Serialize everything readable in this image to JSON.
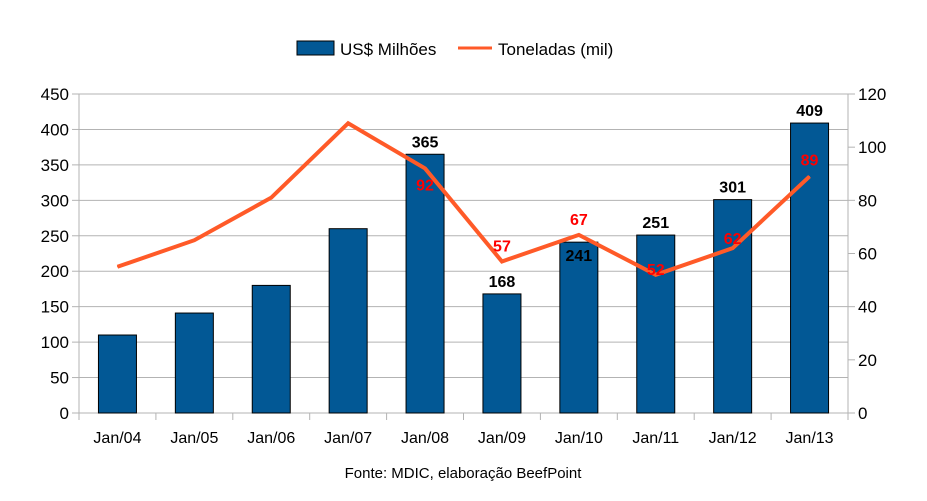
{
  "chart_data": {
    "type": "bar",
    "title": "",
    "categories": [
      "Jan/04",
      "Jan/05",
      "Jan/06",
      "Jan/07",
      "Jan/08",
      "Jan/09",
      "Jan/10",
      "Jan/11",
      "Jan/12",
      "Jan/13"
    ],
    "series": [
      {
        "name": "US$ Milhões",
        "type": "bar",
        "axis": "left",
        "color": "#025895",
        "values": [
          110,
          141,
          180,
          260,
          365,
          168,
          241,
          251,
          301,
          409
        ],
        "labels": [
          null,
          null,
          null,
          null,
          "365",
          "168",
          "241",
          "251",
          "301",
          "409"
        ]
      },
      {
        "name": "Toneladas (mil)",
        "type": "line",
        "axis": "right",
        "color": "#ff5a28",
        "values": [
          55,
          65,
          81,
          109,
          92,
          57,
          67,
          52,
          62,
          89
        ],
        "labels": [
          null,
          null,
          null,
          null,
          "92",
          "57",
          "67",
          "52",
          "62",
          "89"
        ]
      }
    ],
    "y_left": {
      "label": "",
      "ylim": [
        0,
        450
      ],
      "ticks": [
        0,
        50,
        100,
        150,
        200,
        250,
        300,
        350,
        400,
        450
      ]
    },
    "y_right": {
      "label": "",
      "ylim": [
        0,
        120
      ],
      "ticks": [
        0,
        20,
        40,
        60,
        80,
        100,
        120
      ]
    },
    "xlabel": "",
    "grid": true,
    "legend": {
      "position": "top-center",
      "entries": [
        "US$ Milhões",
        "Toneladas (mil)"
      ]
    },
    "source": "Fonte: MDIC, elaboração BeefPoint"
  }
}
